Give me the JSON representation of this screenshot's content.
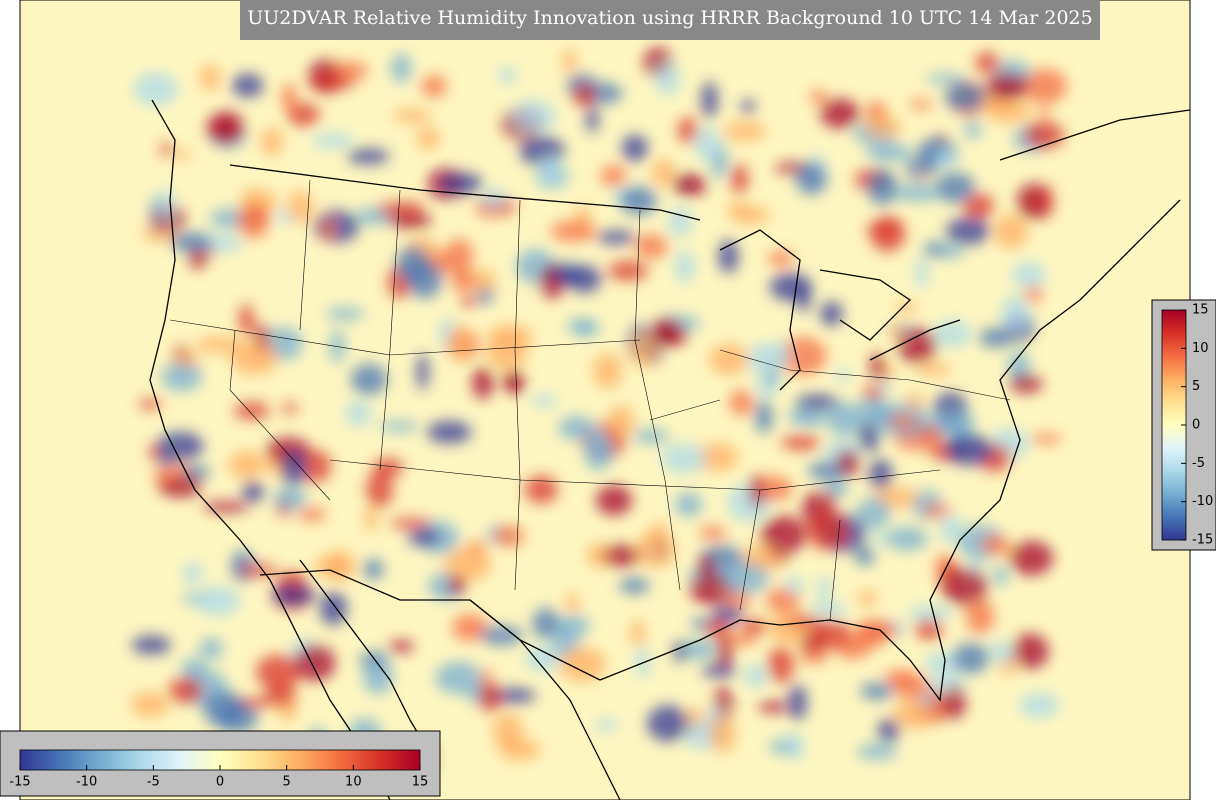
{
  "title": "UU2DVAR Relative Humidity Innovation using HRRR Background 10 UTC 14 Mar 2025",
  "colormap": [
    "#313695",
    "#4575b4",
    "#74add1",
    "#abd9e9",
    "#e0f3f8",
    "#ffffbf",
    "#fee090",
    "#fdae61",
    "#f46d43",
    "#d73027",
    "#a50026"
  ],
  "colorbars": [
    {
      "orientation": "horizontal",
      "lim": [
        -15,
        15
      ],
      "ticks": [
        -15,
        -10,
        -5,
        0,
        5,
        10,
        15
      ]
    },
    {
      "orientation": "vertical",
      "lim": [
        -15,
        15
      ],
      "ticks": [
        -15,
        -10,
        -5,
        0,
        5,
        10,
        15
      ]
    }
  ]
}
